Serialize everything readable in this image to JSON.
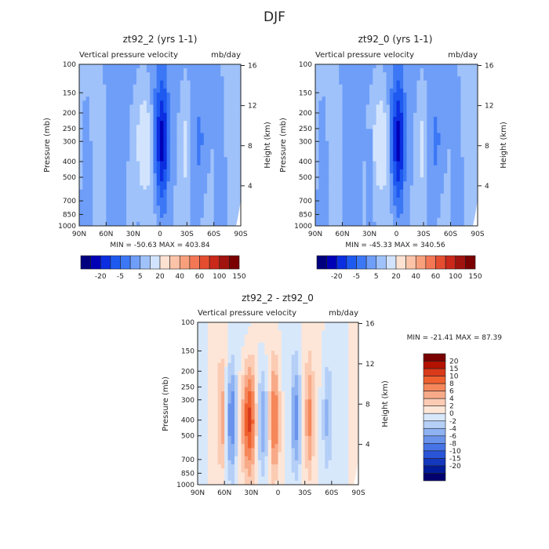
{
  "figure": {
    "title": "DJF"
  },
  "colors": {
    "frame": "#222222",
    "abs_scale": [
      "#00007f",
      "#0000b7",
      "#0a2ee0",
      "#1e5af0",
      "#3c78f5",
      "#6e9ef8",
      "#a0c2fa",
      "#d2e4fd",
      "#fde2d2",
      "#fbc3a8",
      "#f8a07c",
      "#f37755",
      "#e54d30",
      "#c9281a",
      "#a0130e",
      "#7a0000"
    ],
    "diff_scale": [
      "#7a0000",
      "#b31200",
      "#d93a1a",
      "#f0602e",
      "#f5875a",
      "#f8aa88",
      "#fbcbb3",
      "#fde6d8",
      "#d8e8fb",
      "#b5cff7",
      "#8eb2f2",
      "#6a93ec",
      "#4674e6",
      "#2a55d8",
      "#1438bd",
      "#001c99",
      "#00006e"
    ]
  },
  "chart_data": [
    {
      "type": "heatmap",
      "title": "zt92_2 (yrs 1-1)",
      "subtitle_left": "Vertical pressure velocity",
      "subtitle_right": "mb/day",
      "ylabel": "Pressure (mb)",
      "ylabel_right": "Height (km)",
      "x_ticks": [
        "90N",
        "60N",
        "30N",
        "0",
        "30S",
        "60S",
        "90S"
      ],
      "y_ticks": [
        "100",
        "150",
        "200",
        "250",
        "300",
        "400",
        "500",
        "700",
        "850",
        "1000"
      ],
      "height_ticks": [
        "16",
        "12",
        "8",
        "4"
      ],
      "stats": "MIN = -50.63   MAX = 403.84",
      "min": -50.63,
      "max": 403.84,
      "colorbar_labels": [
        "-20",
        "-5",
        "5",
        "20",
        "40",
        "60",
        "100",
        "150"
      ]
    },
    {
      "type": "heatmap",
      "title": "zt92_0 (yrs 1-1)",
      "subtitle_left": "Vertical pressure velocity",
      "subtitle_right": "mb/day",
      "ylabel": "Pressure (mb)",
      "ylabel_right": "Height (km)",
      "x_ticks": [
        "90N",
        "60N",
        "30N",
        "0",
        "30S",
        "60S",
        "90S"
      ],
      "y_ticks": [
        "100",
        "150",
        "200",
        "250",
        "300",
        "400",
        "500",
        "700",
        "850",
        "1000"
      ],
      "height_ticks": [
        "16",
        "12",
        "8",
        "4"
      ],
      "stats": "MIN = -45.33   MAX = 340.56",
      "min": -45.33,
      "max": 340.56,
      "colorbar_labels": [
        "-20",
        "-5",
        "5",
        "20",
        "40",
        "60",
        "100",
        "150"
      ]
    },
    {
      "type": "heatmap",
      "title": "zt92_2 - zt92_0",
      "subtitle_left": "Vertical pressure velocity",
      "subtitle_right": "mb/day",
      "ylabel": "Pressure (mb)",
      "ylabel_right": "Height (km)",
      "x_ticks": [
        "90N",
        "60N",
        "30N",
        "0",
        "30S",
        "60S",
        "90S"
      ],
      "y_ticks": [
        "100",
        "150",
        "200",
        "250",
        "300",
        "400",
        "500",
        "700",
        "850",
        "1000"
      ],
      "height_ticks": [
        "16",
        "12",
        "8",
        "4"
      ],
      "stats": "MIN = -21.41   MAX =   87.39",
      "min": -21.41,
      "max": 87.39,
      "colorbar_labels": [
        "20",
        "15",
        "10",
        "8",
        "6",
        "4",
        "2",
        "0",
        "-2",
        "-4",
        "-6",
        "-8",
        "-10",
        "-15",
        "-20"
      ]
    }
  ]
}
